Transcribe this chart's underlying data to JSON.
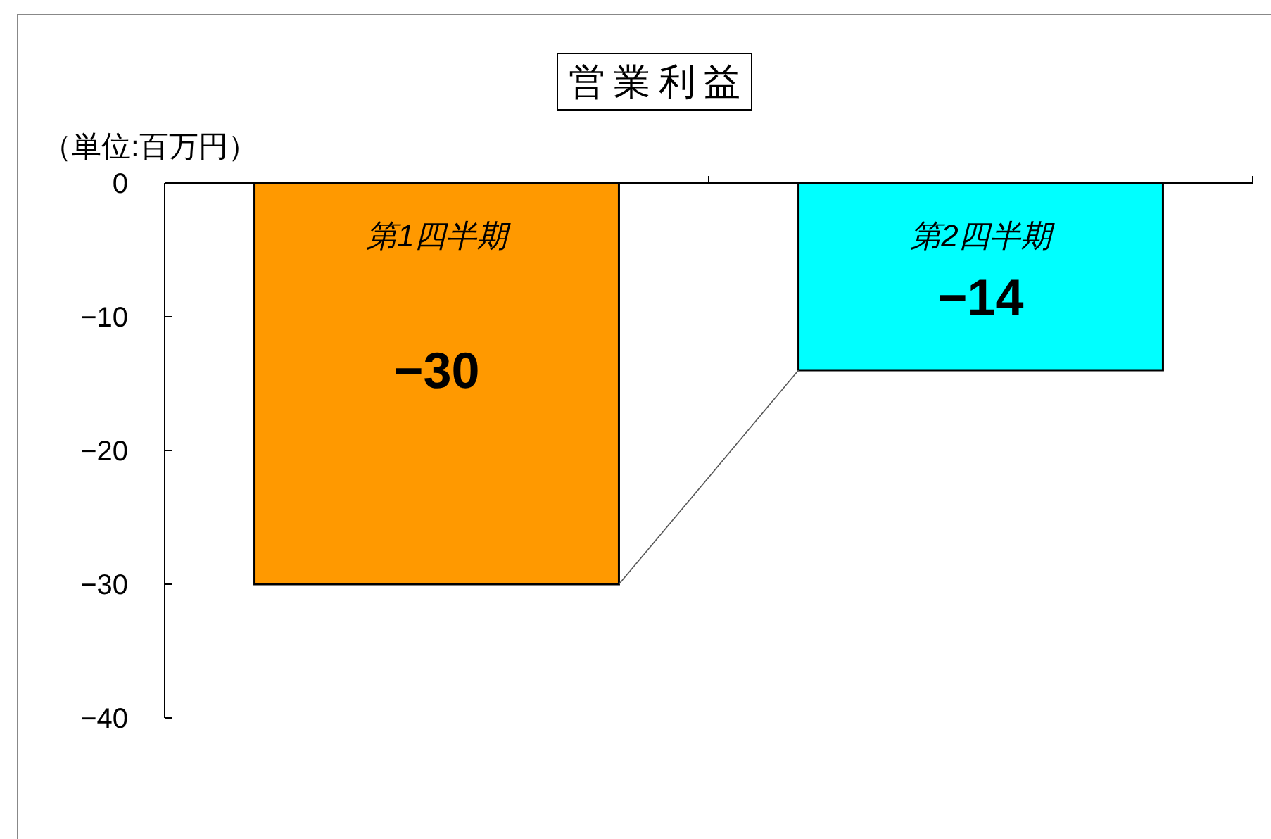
{
  "chart_data": {
    "type": "bar",
    "title": "営業利益",
    "ylabel": "（単位:百万円）",
    "categories": [
      "第1四半期",
      "第2四半期"
    ],
    "values": [
      -30,
      -14
    ],
    "colors": [
      "#ff9900",
      "#00ffff"
    ],
    "ylim": [
      -40,
      0
    ],
    "yticks": [
      0,
      -10,
      -20,
      -30,
      -40
    ],
    "data_labels": true,
    "grid": false
  }
}
